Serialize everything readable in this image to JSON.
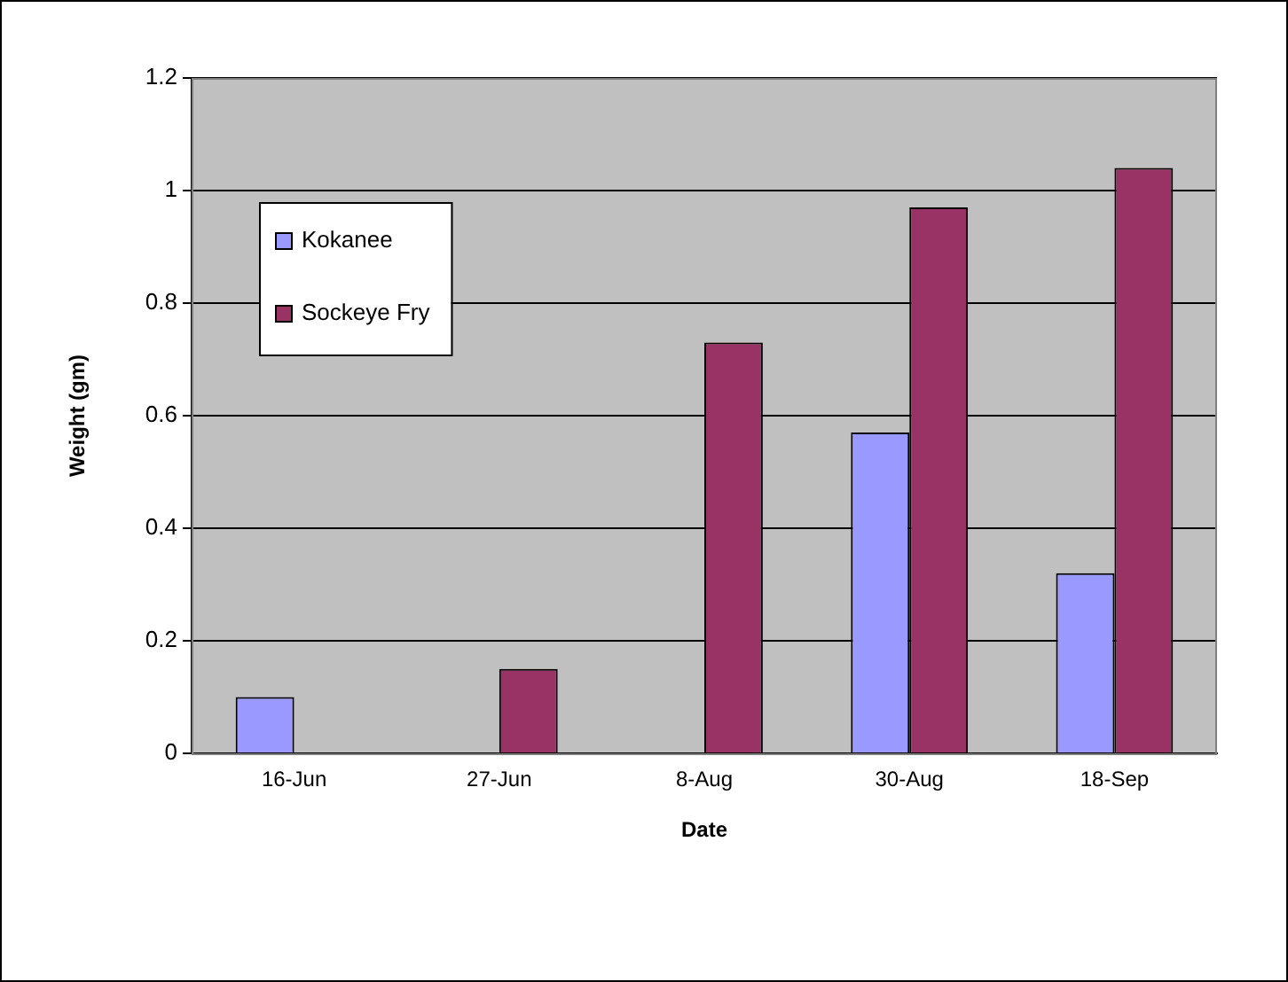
{
  "chart_data": {
    "type": "bar",
    "xlabel": "Date",
    "ylabel": "Weight (gm)",
    "categories": [
      "16-Jun",
      "27-Jun",
      "8-Aug",
      "30-Aug",
      "18-Sep"
    ],
    "series": [
      {
        "name": "Kokanee",
        "color": "#9999ff",
        "values": [
          0.1,
          null,
          null,
          0.57,
          0.32
        ]
      },
      {
        "name": "Sockeye Fry",
        "color": "#993366",
        "values": [
          null,
          0.15,
          0.73,
          0.97,
          1.04
        ]
      }
    ],
    "ylim": [
      0,
      1.2
    ],
    "yticks": [
      0,
      0.2,
      0.4,
      0.6,
      0.8,
      1,
      1.2
    ],
    "grid": "y",
    "legend": "top left"
  }
}
